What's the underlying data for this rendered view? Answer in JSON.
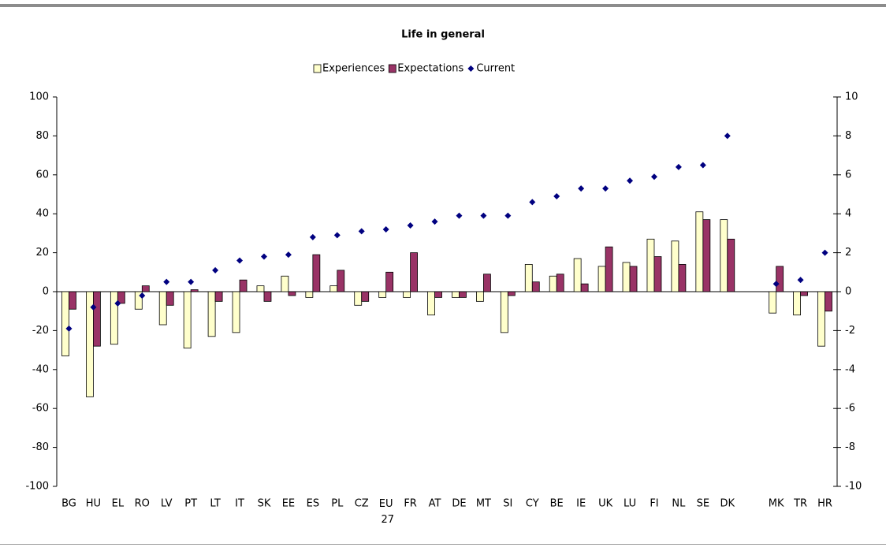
{
  "chart_data": {
    "type": "bar",
    "title": "Life in general",
    "categories": [
      "BG",
      "HU",
      "EL",
      "RO",
      "LV",
      "PT",
      "LT",
      "IT",
      "SK",
      "EE",
      "ES",
      "PL",
      "CZ",
      "EU 27",
      "FR",
      "AT",
      "DE",
      "MT",
      "SI",
      "CY",
      "BE",
      "IE",
      "UK",
      "LU",
      "FI",
      "NL",
      "SE",
      "DK",
      null,
      "MK",
      "TR",
      "HR"
    ],
    "series": [
      {
        "name": "Experiences",
        "type": "bar",
        "color": "#ffffcc",
        "values": [
          -33,
          -54,
          -27,
          -9,
          -17,
          -29,
          -23,
          -21,
          3,
          8,
          -3,
          3,
          -7,
          -3,
          -3,
          -12,
          -3,
          -5,
          -21,
          14,
          8,
          17,
          13,
          15,
          27,
          26,
          41,
          37,
          null,
          -11,
          -12,
          -28
        ]
      },
      {
        "name": "Expectations",
        "type": "bar",
        "color": "#993366",
        "values": [
          -9,
          -28,
          -6,
          3,
          -7,
          1,
          -5,
          6,
          -5,
          -2,
          19,
          11,
          -5,
          10,
          20,
          -3,
          -3,
          9,
          -2,
          5,
          9,
          4,
          23,
          13,
          18,
          14,
          37,
          27,
          null,
          13,
          -2,
          -10
        ]
      },
      {
        "name": "Current",
        "type": "scatter",
        "axis": "y2",
        "color": "#000080",
        "values": [
          -1.9,
          -0.8,
          -0.6,
          -0.2,
          0.5,
          0.5,
          1.1,
          1.6,
          1.8,
          1.9,
          2.8,
          2.9,
          3.1,
          3.2,
          3.4,
          3.6,
          3.9,
          3.9,
          3.9,
          4.6,
          4.9,
          5.3,
          5.3,
          5.7,
          5.9,
          6.4,
          6.5,
          8.0,
          null,
          0.4,
          0.6,
          2.0
        ]
      }
    ],
    "ylim": [
      -100,
      100
    ],
    "yticks": [
      -100,
      -80,
      -60,
      -40,
      -20,
      0,
      20,
      40,
      60,
      80,
      100
    ],
    "y2lim": [
      -10,
      10
    ],
    "y2ticks": [
      -10,
      -8,
      -6,
      -4,
      -2,
      0,
      2,
      4,
      6,
      8,
      10
    ],
    "legend": "top",
    "grid": false
  }
}
